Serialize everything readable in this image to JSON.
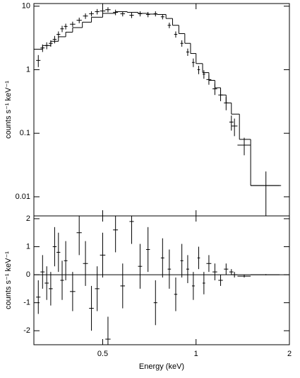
{
  "chart_data": [
    {
      "type": "errorbar",
      "y_label": "counts s⁻¹ keV⁻¹",
      "xlog": true,
      "ylog": true,
      "xlim": [
        0.3,
        2
      ],
      "ylim": [
        0.005,
        11
      ],
      "xticks": [
        0.5,
        1,
        2
      ],
      "yticks": [
        0.01,
        0.1,
        1,
        10
      ],
      "show_xtick_labels": false,
      "color": "#000000",
      "x": [
        0.31,
        0.32,
        0.33,
        0.34,
        0.35,
        0.36,
        0.37,
        0.38,
        0.4,
        0.42,
        0.44,
        0.46,
        0.48,
        0.5,
        0.52,
        0.55,
        0.58,
        0.62,
        0.66,
        0.7,
        0.74,
        0.78,
        0.82,
        0.86,
        0.9,
        0.94,
        0.98,
        1.02,
        1.06,
        1.1,
        1.15,
        1.2,
        1.25,
        1.3,
        1.33,
        1.43,
        1.68
      ],
      "xerr": [
        0.005,
        0.005,
        0.005,
        0.005,
        0.005,
        0.005,
        0.005,
        0.005,
        0.008,
        0.008,
        0.008,
        0.008,
        0.008,
        0.01,
        0.01,
        0.01,
        0.01,
        0.01,
        0.01,
        0.01,
        0.01,
        0.01,
        0.01,
        0.01,
        0.01,
        0.01,
        0.01,
        0.01,
        0.01,
        0.02,
        0.02,
        0.02,
        0.02,
        0.02,
        0.03,
        0.07,
        0.18
      ],
      "values": [
        1.4,
        2.2,
        2.4,
        2.6,
        3.0,
        3.6,
        4.4,
        4.8,
        5.2,
        6.0,
        7.0,
        7.6,
        8.2,
        8.4,
        8.8,
        8.0,
        7.6,
        7.2,
        7.6,
        7.4,
        7.6,
        6.8,
        5.0,
        3.6,
        2.6,
        1.9,
        1.3,
        1.0,
        0.85,
        0.7,
        0.5,
        0.4,
        0.3,
        0.15,
        0.13,
        0.065,
        0.015
      ],
      "yerr": [
        0.3,
        0.3,
        0.3,
        0.3,
        0.4,
        0.4,
        0.5,
        0.5,
        0.5,
        0.6,
        0.7,
        0.7,
        0.8,
        0.8,
        0.8,
        0.8,
        0.7,
        0.7,
        0.7,
        0.7,
        0.7,
        0.6,
        0.5,
        0.4,
        0.3,
        0.25,
        0.2,
        0.15,
        0.13,
        0.12,
        0.1,
        0.08,
        0.07,
        0.04,
        0.04,
        0.02,
        0.01
      ],
      "model": {
        "bins": [
          0.3,
          0.32,
          0.34,
          0.36,
          0.38,
          0.4,
          0.43,
          0.46,
          0.5,
          0.55,
          0.6,
          0.65,
          0.7,
          0.75,
          0.8,
          0.84,
          0.88,
          0.92,
          0.96,
          1.0,
          1.05,
          1.1,
          1.15,
          1.2,
          1.25,
          1.3,
          1.38,
          1.5,
          1.88
        ],
        "values": [
          2.1,
          2.4,
          2.8,
          3.3,
          3.9,
          4.6,
          5.6,
          6.7,
          7.7,
          8.2,
          8.0,
          7.7,
          7.5,
          7.4,
          6.4,
          5.0,
          3.7,
          2.6,
          1.8,
          1.25,
          0.9,
          0.68,
          0.52,
          0.4,
          0.3,
          0.2,
          0.08,
          0.015
        ]
      }
    },
    {
      "type": "errorbar",
      "y_label": "counts s⁻¹ keV⁻¹",
      "x_label": "Energy (keV)",
      "xlog": true,
      "ylog": false,
      "xlim": [
        0.3,
        2
      ],
      "ylim": [
        -2.5,
        2.1
      ],
      "xticks": [
        0.5,
        1,
        2
      ],
      "yticks": [
        -2,
        -1,
        0,
        1,
        2
      ],
      "show_xtick_labels": true,
      "zero_line": 0,
      "color": "#000000",
      "x": [
        0.31,
        0.32,
        0.33,
        0.34,
        0.35,
        0.36,
        0.37,
        0.38,
        0.4,
        0.42,
        0.44,
        0.46,
        0.48,
        0.5,
        0.52,
        0.55,
        0.58,
        0.62,
        0.66,
        0.7,
        0.74,
        0.78,
        0.82,
        0.86,
        0.9,
        0.94,
        0.98,
        1.02,
        1.06,
        1.1,
        1.15,
        1.2,
        1.25,
        1.3,
        1.33,
        1.43,
        1.68
      ],
      "xerr": [
        0.005,
        0.005,
        0.005,
        0.005,
        0.005,
        0.005,
        0.005,
        0.005,
        0.008,
        0.008,
        0.008,
        0.008,
        0.008,
        0.01,
        0.01,
        0.01,
        0.01,
        0.01,
        0.01,
        0.01,
        0.01,
        0.01,
        0.01,
        0.01,
        0.01,
        0.01,
        0.01,
        0.01,
        0.01,
        0.02,
        0.02,
        0.02,
        0.02,
        0.02,
        0.03,
        0.07,
        0.18
      ],
      "values": [
        -0.8,
        0.1,
        -0.3,
        -0.5,
        1.0,
        0.8,
        -0.2,
        0.5,
        -0.6,
        1.5,
        0.4,
        -1.2,
        -0.5,
        0.7,
        -2.3,
        1.6,
        -0.4,
        1.9,
        0.3,
        0.9,
        -1.0,
        0.6,
        0.2,
        -0.7,
        0.5,
        0.2,
        -0.4,
        0.6,
        -0.3,
        0.4,
        0.1,
        -0.2,
        0.2,
        0.1,
        0.0,
        -0.05,
        0.0
      ],
      "yerr": [
        0.6,
        0.6,
        0.6,
        0.6,
        0.7,
        0.7,
        0.7,
        0.7,
        0.7,
        0.8,
        0.8,
        0.8,
        0.8,
        0.8,
        0.8,
        0.8,
        0.8,
        0.8,
        0.8,
        0.8,
        0.8,
        0.7,
        0.7,
        0.6,
        0.6,
        0.5,
        0.5,
        0.4,
        0.4,
        0.3,
        0.3,
        0.2,
        0.2,
        0.1,
        0.1,
        0.05,
        0.02
      ]
    }
  ]
}
